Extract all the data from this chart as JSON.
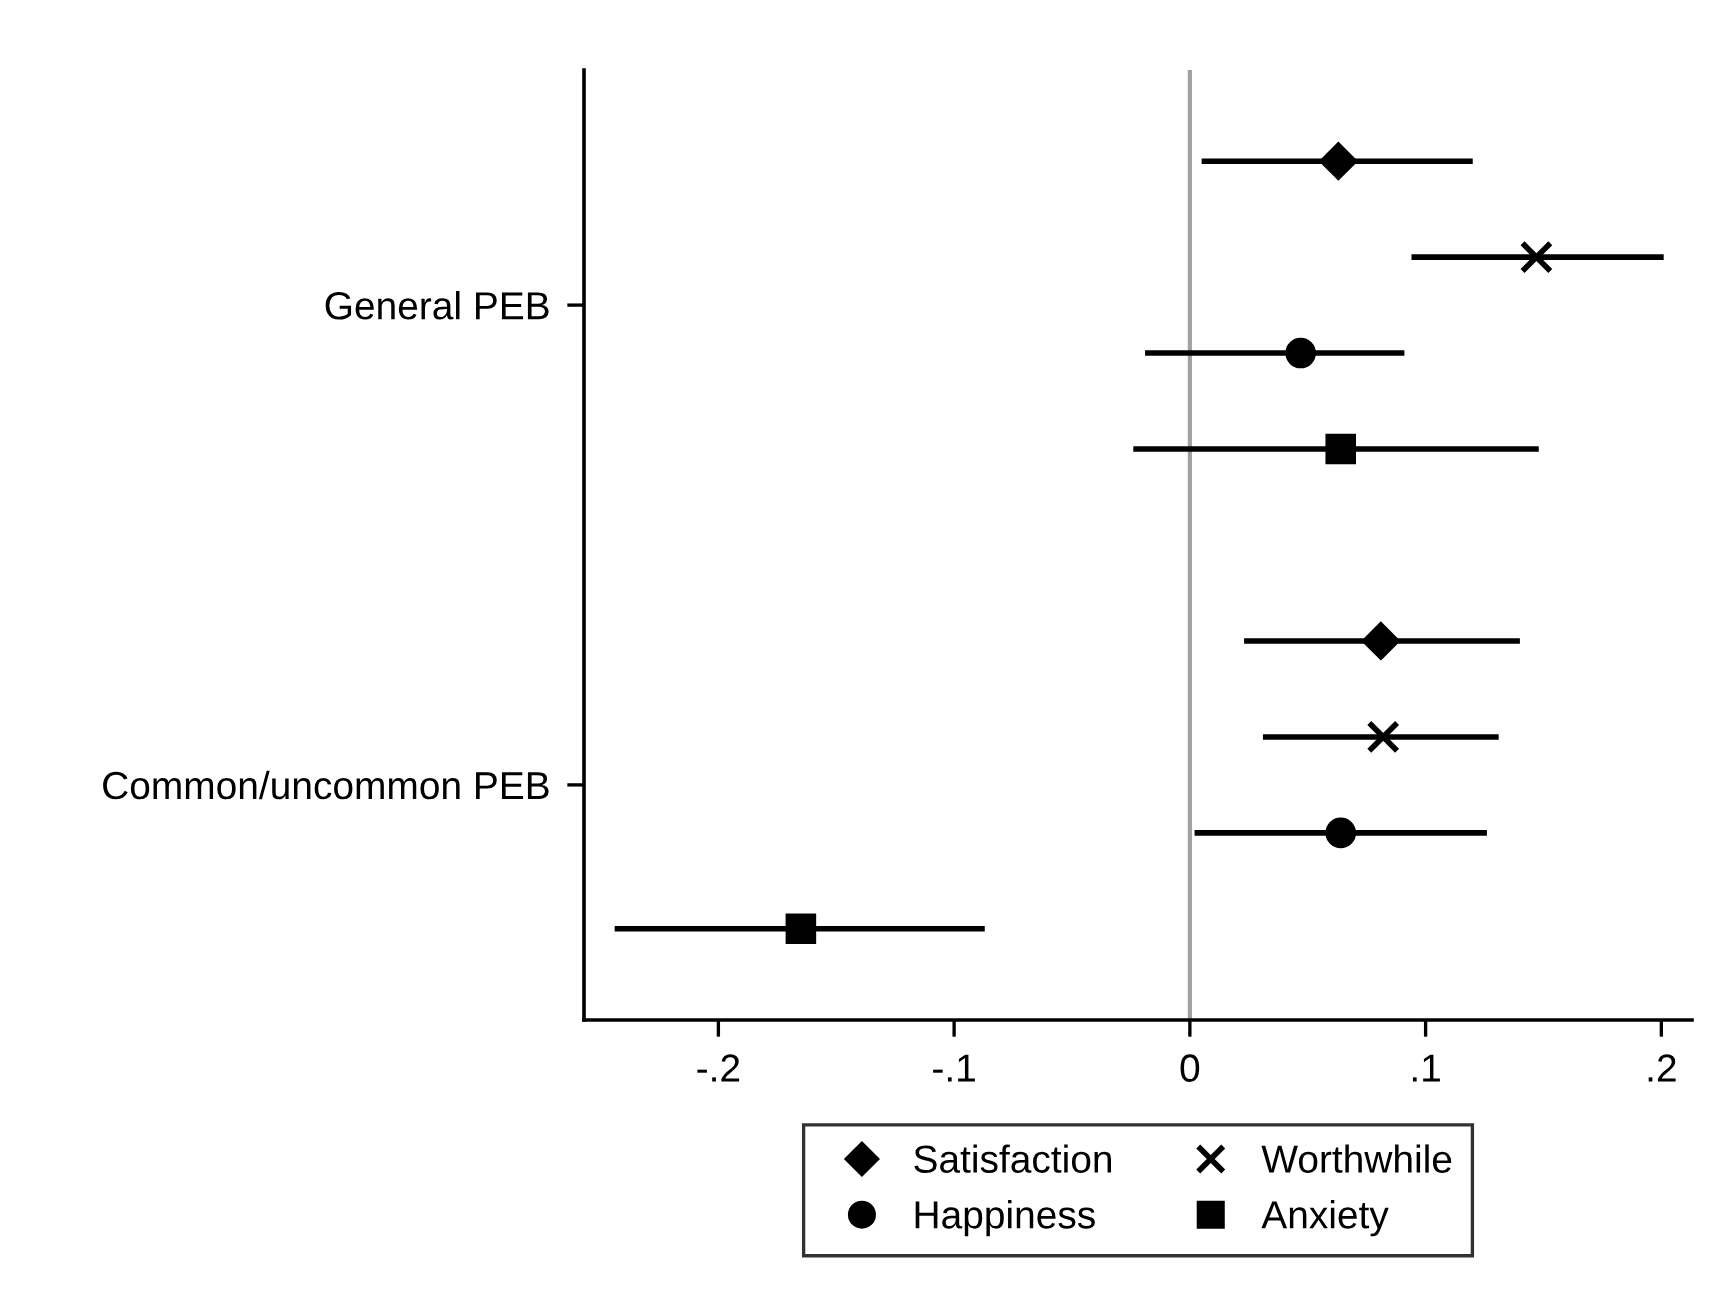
{
  "chart_data": {
    "type": "scatter",
    "orientation": "horizontal",
    "categories": [
      "General PEB",
      "Common/uncommon PEB"
    ],
    "xlim": [
      -0.257,
      0.213
    ],
    "xticks": [
      {
        "value": -0.2,
        "label": "-.2"
      },
      {
        "value": -0.1,
        "label": "-.1"
      },
      0,
      {
        "value": 0.1,
        "label": ".1"
      },
      {
        "value": 0.2,
        "label": ".2"
      }
    ],
    "grid": false,
    "legend": "bottom",
    "ref_lines": [
      {
        "axis": "x",
        "value": 0,
        "color": "#a0a0a0"
      }
    ],
    "series": [
      {
        "name": "Satisfaction",
        "color": "#000000",
        "marker": "diamond",
        "values": [
          0.063,
          0.081
        ],
        "errors": [
          [
            0.005,
            0.12
          ],
          [
            0.023,
            0.14
          ]
        ]
      },
      {
        "name": "Worthwhile",
        "color": "#000000",
        "marker": "cross",
        "values": [
          0.147,
          0.082
        ],
        "errors": [
          [
            0.094,
            0.201
          ],
          [
            0.031,
            0.131
          ]
        ]
      },
      {
        "name": "Happiness",
        "color": "#000000",
        "marker": "circle",
        "values": [
          0.047,
          0.064
        ],
        "errors": [
          [
            -0.019,
            0.091
          ],
          [
            0.002,
            0.126
          ]
        ]
      },
      {
        "name": "Anxiety",
        "color": "#000000",
        "marker": "square",
        "values": [
          0.064,
          -0.165
        ],
        "errors": [
          [
            -0.024,
            0.148
          ],
          [
            -0.244,
            -0.087
          ]
        ]
      }
    ]
  }
}
